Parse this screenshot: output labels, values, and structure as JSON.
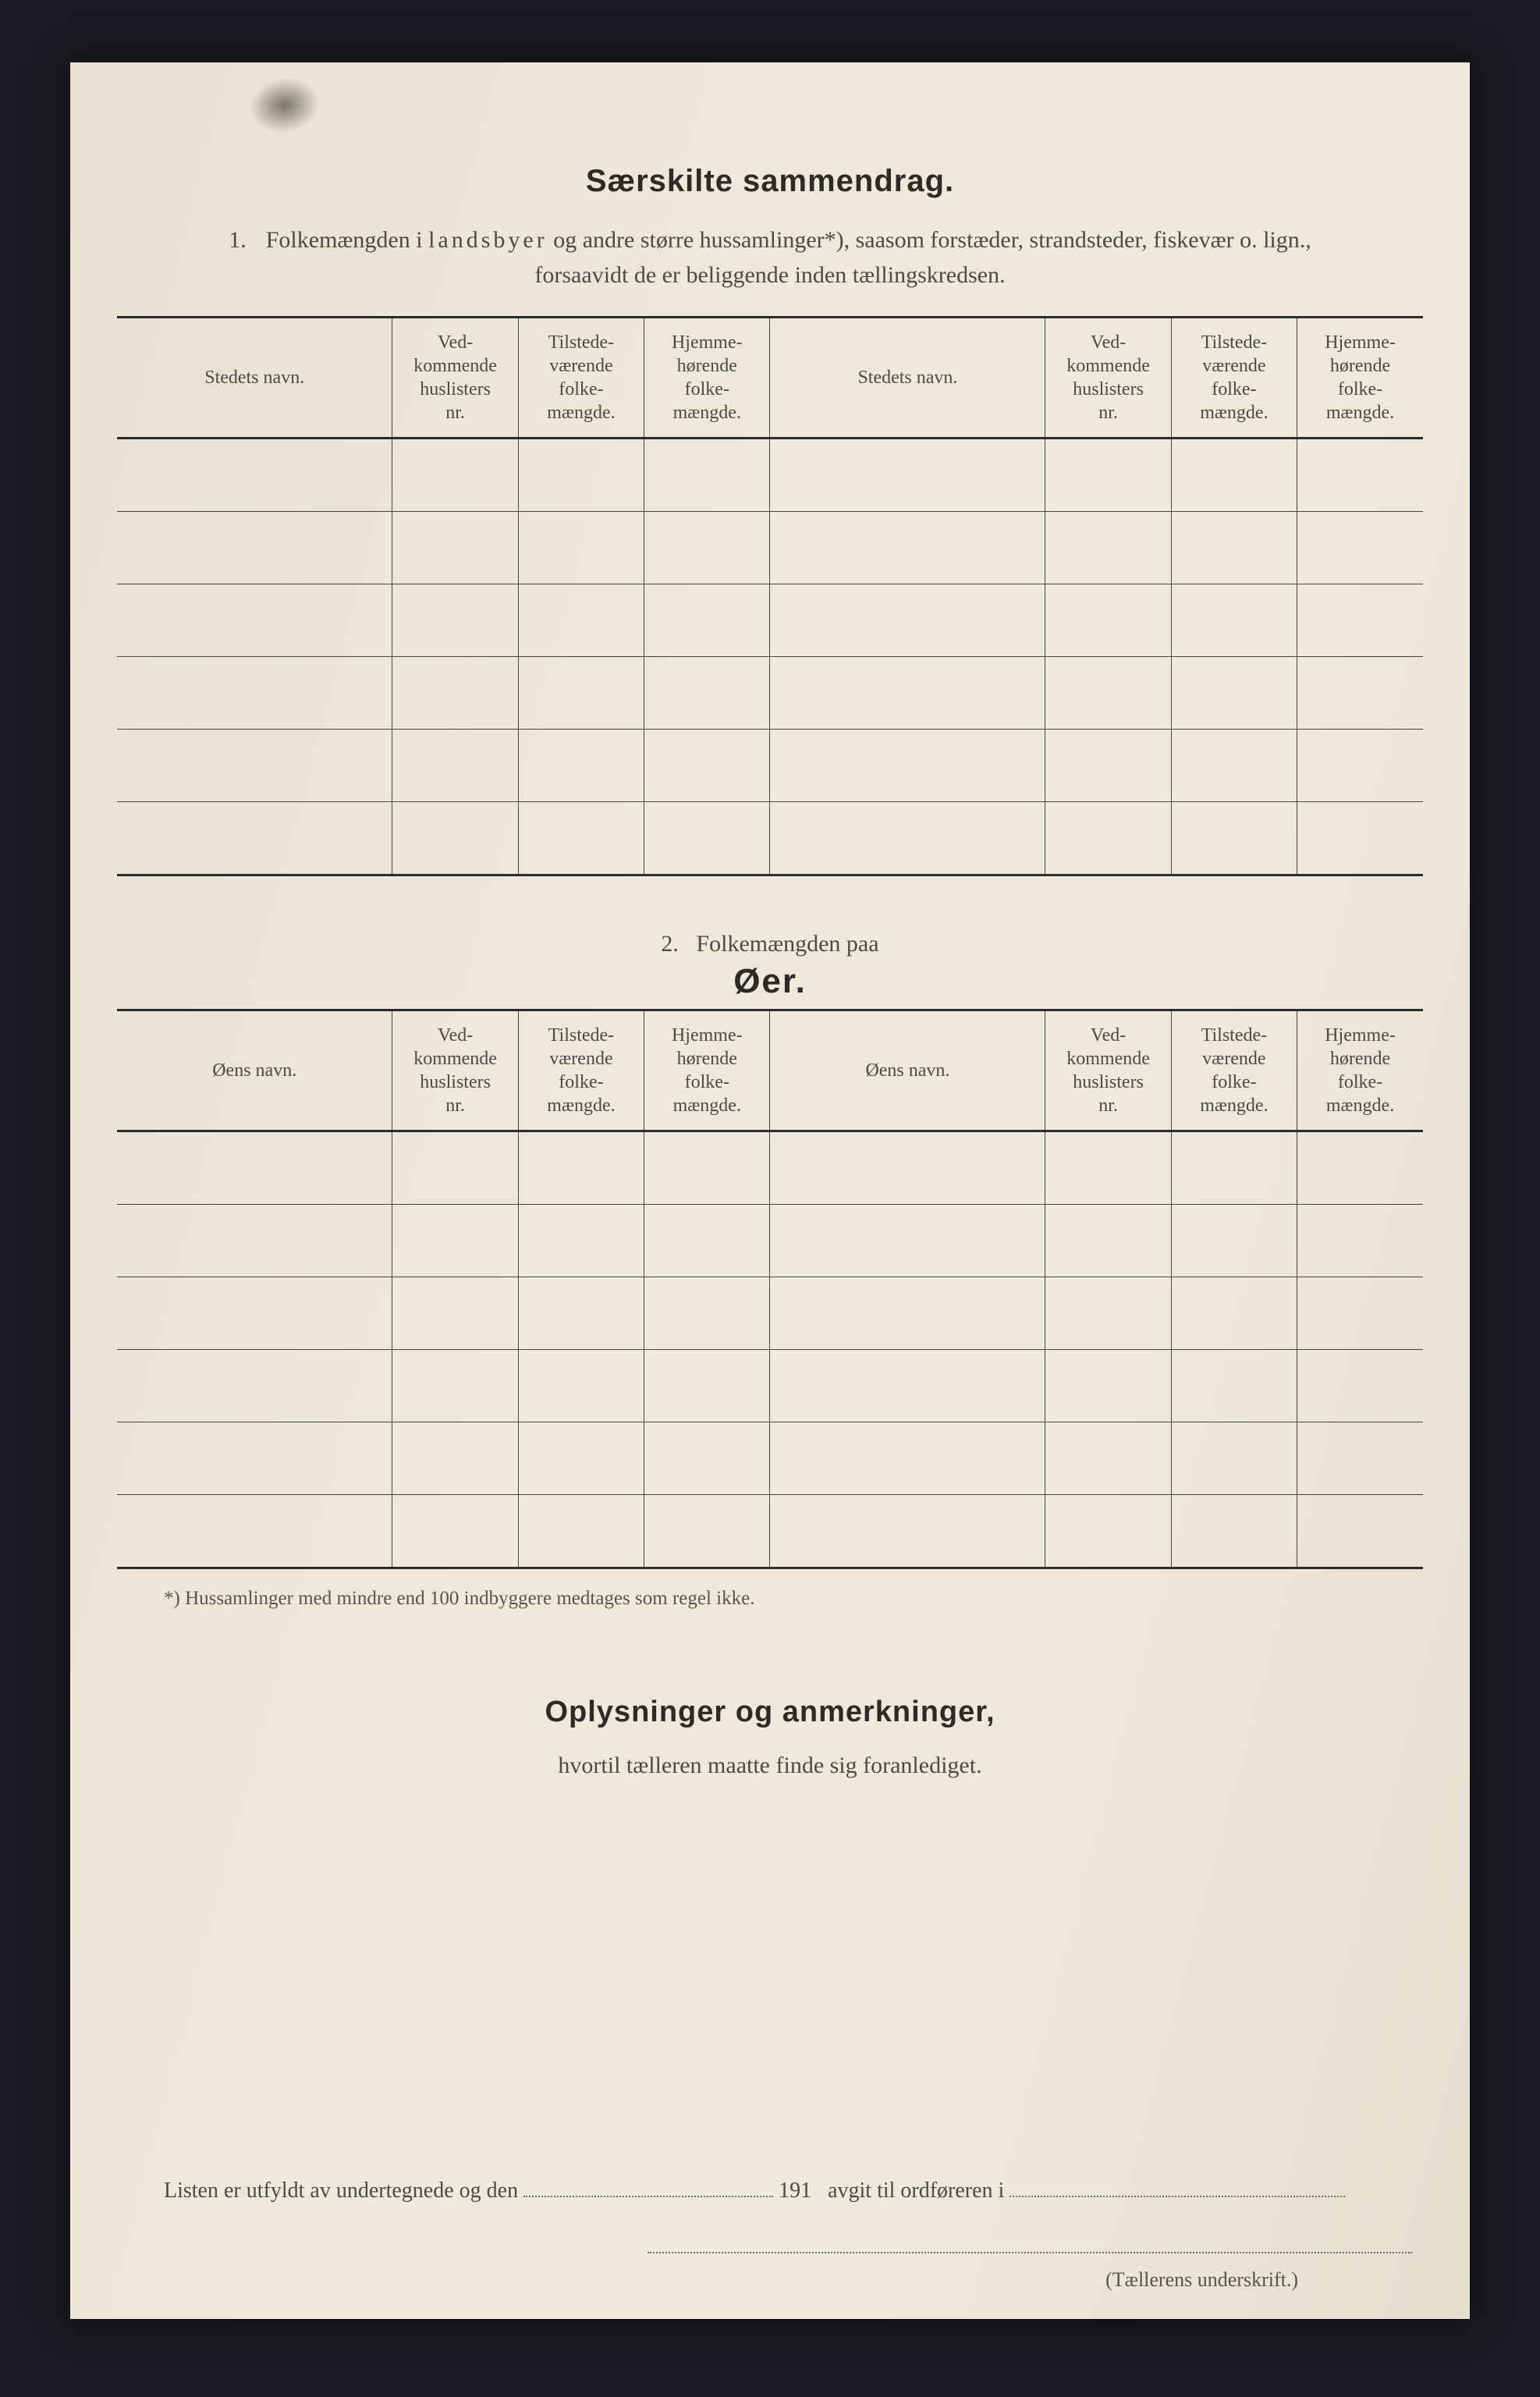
{
  "page": {
    "background_color": "#1a1a22",
    "paper_color": "#ece6d8",
    "ink_color": "#3a3a38",
    "rule_color": "#454540"
  },
  "title": "Særskilte sammendrag.",
  "section1": {
    "number": "1.",
    "intro_line1_pre": "Folkemængden i ",
    "intro_line1_spaced": "landsbyer",
    "intro_line1_post": " og andre større hussamlinger*), saasom forstæder, strandsteder, fiskevær o. lign.,",
    "intro_line2": "forsaavidt de er beliggende inden tællingskredsen.",
    "headers": {
      "name": "Stedets navn.",
      "col_a": "Ved-\nkommende\nhuslisters\nnr.",
      "col_b": "Tilstede-\nværende\nfolke-\nmængde.",
      "col_c": "Hjemme-\nhørende\nfolke-\nmængde."
    },
    "row_count": 6
  },
  "section2": {
    "number": "2.",
    "title_line": "Folkemængden paa",
    "title_big": "Øer.",
    "headers": {
      "name": "Øens navn.",
      "col_a": "Ved-\nkommende\nhuslisters\nnr.",
      "col_b": "Tilstede-\nværende\nfolke-\nmængde.",
      "col_c": "Hjemme-\nhørende\nfolke-\nmængde."
    },
    "row_count": 6
  },
  "footnote": "*)  Hussamlinger med mindre end 100 indbyggere medtages som regel ikke.",
  "remarks": {
    "title": "Oplysninger og anmerkninger,",
    "sub": "hvortil tælleren maatte finde sig foranlediget."
  },
  "signoff": {
    "pre": "Listen er utfyldt av undertegnede og den",
    "mid": "191",
    "post": "avgit til ordføreren i",
    "caption": "(Tællerens underskrift.)"
  }
}
